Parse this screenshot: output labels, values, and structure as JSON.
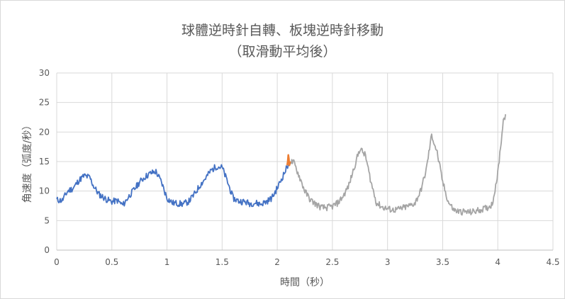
{
  "chart_data": {
    "type": "line",
    "title": "球體逆時針自轉、板塊逆時針移動",
    "subtitle": "（取滑動平均後）",
    "xlabel": "時間（秒）",
    "ylabel": "角速度（弧度/秒）",
    "xlim": [
      0,
      4.5
    ],
    "ylim": [
      0,
      30
    ],
    "xticks": [
      "0",
      "0.5",
      "1",
      "1.5",
      "2",
      "2.5",
      "3",
      "3.5",
      "4",
      "4.5"
    ],
    "yticks": [
      "0",
      "5",
      "10",
      "15",
      "20",
      "25",
      "30"
    ],
    "grid": true,
    "legend": "none",
    "colors": {
      "blue": "#4472c4",
      "orange": "#ed7d31",
      "gray": "#a5a5a5"
    },
    "series": [
      {
        "color": "#4472c4",
        "x": [
          0,
          0.05,
          0.1,
          0.15,
          0.2,
          0.25,
          0.3,
          0.33,
          0.38,
          0.45,
          0.5,
          0.55,
          0.6,
          0.65,
          0.7,
          0.75,
          0.8,
          0.85,
          0.88,
          0.9,
          0.95,
          1.0,
          1.05,
          1.1,
          1.15,
          1.2,
          1.25,
          1.3,
          1.35,
          1.4,
          1.45,
          1.5,
          1.55,
          1.6,
          1.65,
          1.7,
          1.75,
          1.8,
          1.85,
          1.9,
          1.95,
          2.0,
          2.05,
          2.1
        ],
        "y": [
          8.5,
          8.4,
          10.0,
          10.5,
          11.8,
          12.6,
          12.3,
          11.0,
          9.5,
          8.6,
          8.2,
          8.4,
          7.6,
          9.0,
          10.2,
          11.5,
          12.4,
          13.0,
          13.2,
          13.3,
          11.5,
          8.8,
          8.0,
          7.9,
          7.8,
          8.3,
          9.5,
          11.0,
          12.2,
          13.5,
          14.2,
          14.0,
          11.5,
          8.8,
          8.3,
          8.2,
          7.9,
          8.0,
          7.8,
          8.2,
          8.8,
          10.5,
          12.5,
          14.5
        ]
      },
      {
        "color": "#a5a5a5",
        "x": [
          2.12,
          2.15,
          2.2,
          2.25,
          2.3,
          2.35,
          2.4,
          2.45,
          2.5,
          2.55,
          2.6,
          2.65,
          2.7,
          2.75,
          2.8,
          2.85,
          2.9,
          2.95,
          3.0,
          3.05,
          3.1,
          3.15,
          3.2,
          3.25,
          3.3,
          3.35,
          3.4,
          3.45,
          3.5,
          3.55,
          3.6,
          3.65,
          3.7,
          3.75,
          3.8,
          3.85,
          3.9,
          3.95,
          4.0,
          4.05,
          4.07
        ],
        "y": [
          15.0,
          14.8,
          12.5,
          10.0,
          8.5,
          7.8,
          7.2,
          7.2,
          7.4,
          8.0,
          9.2,
          11.0,
          14.2,
          17.2,
          16.0,
          11.5,
          8.0,
          7.3,
          7.0,
          6.8,
          6.9,
          7.2,
          7.5,
          8.0,
          10.0,
          13.5,
          19.5,
          16.5,
          11.5,
          8.2,
          6.8,
          6.5,
          6.5,
          6.4,
          6.6,
          6.9,
          7.1,
          7.8,
          13.0,
          22.0,
          23.0
        ]
      },
      {
        "color": "#ed7d31",
        "x": [
          2.09,
          2.1,
          2.11,
          2.12
        ],
        "y": [
          14.8,
          15.6,
          14.6,
          15.0
        ]
      }
    ]
  }
}
